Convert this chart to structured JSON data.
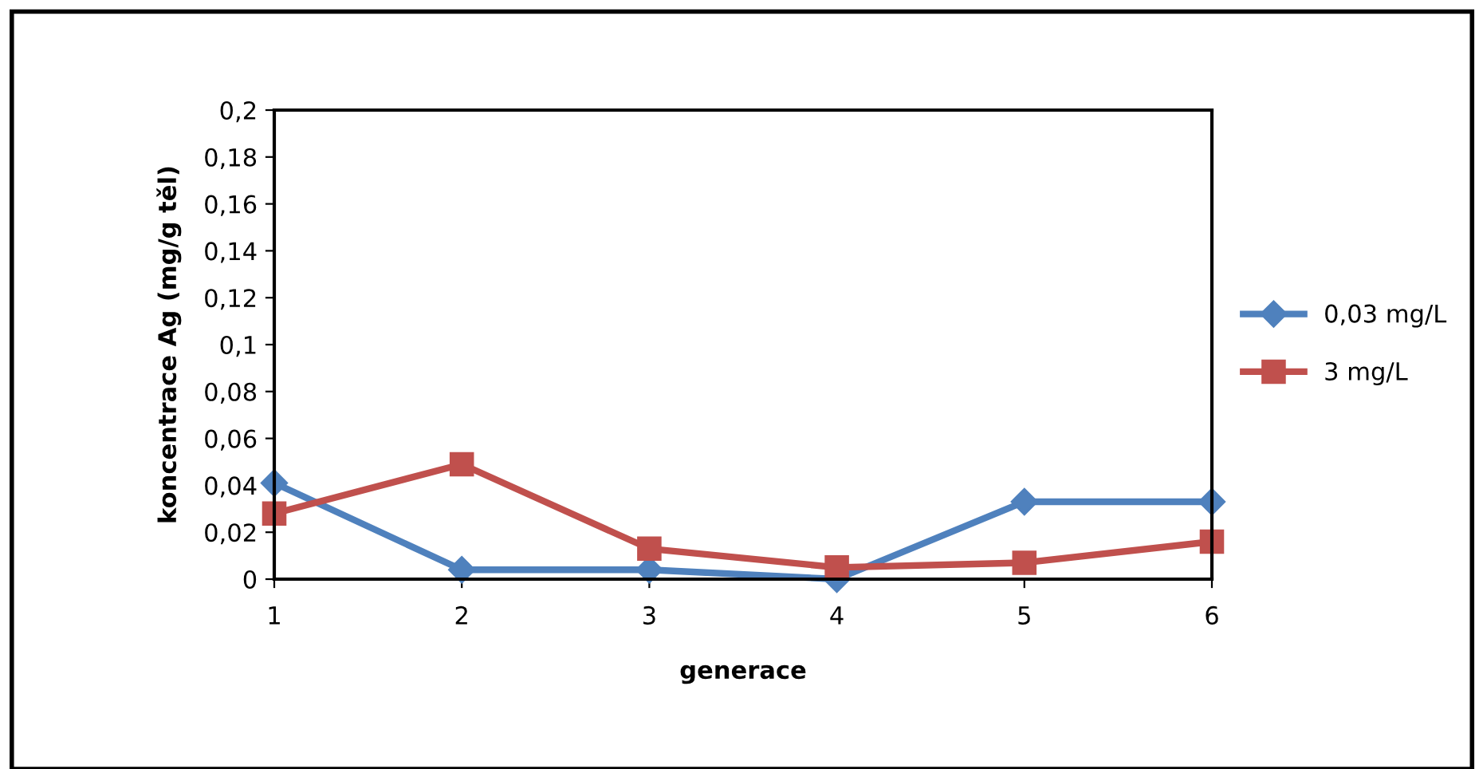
{
  "chart_data": {
    "type": "line",
    "xlabel": "generace",
    "ylabel": "koncentrace Ag (mg/g těl)",
    "categories": [
      "1",
      "2",
      "3",
      "4",
      "5",
      "6"
    ],
    "series": [
      {
        "name": "0,03 mg/L",
        "color": "#4f81bd",
        "marker": "diamond",
        "values": [
          0.041,
          0.004,
          0.004,
          0.0,
          0.033,
          0.033
        ]
      },
      {
        "name": "3 mg/L",
        "color": "#c0504d",
        "marker": "square",
        "values": [
          0.028,
          0.049,
          0.013,
          0.005,
          0.007,
          0.016
        ]
      }
    ],
    "ylim": [
      0,
      0.2
    ],
    "yticks": [
      0,
      {
        "value": 0.02,
        "label": "0,02"
      },
      {
        "value": 0.04,
        "label": "0,04"
      },
      {
        "value": 0.06,
        "label": "0,06"
      },
      {
        "value": 0.08,
        "label": "0,08"
      },
      {
        "value": 0.1,
        "label": "0,1"
      },
      {
        "value": 0.12,
        "label": "0,12"
      },
      {
        "value": 0.14,
        "label": "0,14"
      },
      {
        "value": 0.16,
        "label": "0,16"
      },
      {
        "value": 0.18,
        "label": "0,18"
      },
      {
        "value": 0.2,
        "label": "0,2"
      }
    ],
    "grid": false,
    "legend": "right"
  }
}
